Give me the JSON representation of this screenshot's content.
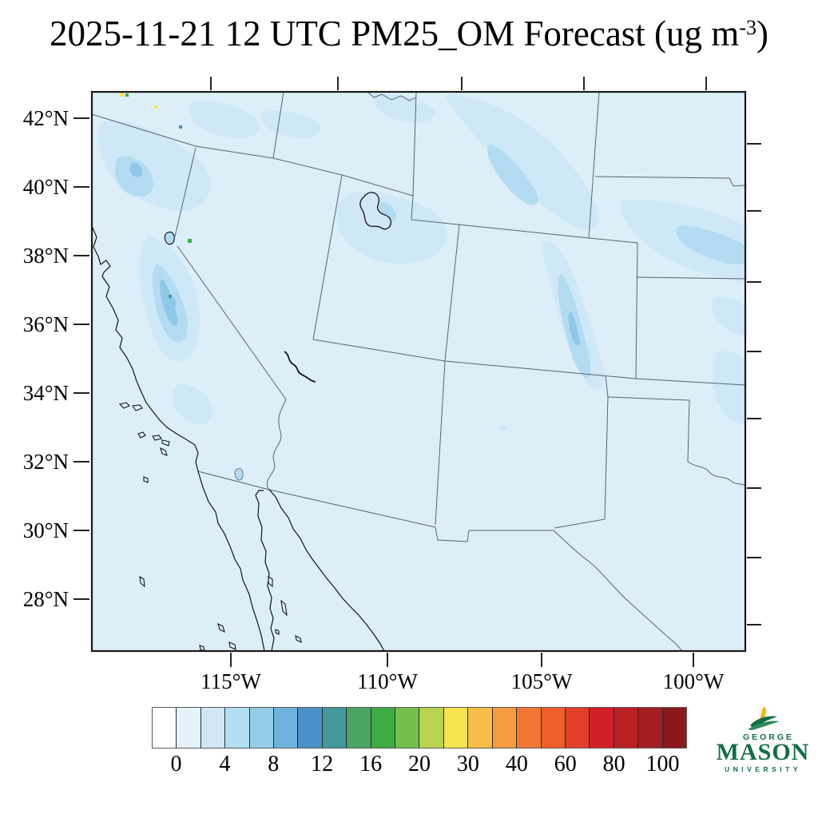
{
  "title": {
    "main": "2025-11-21 12 UTC PM25_OM Forecast (ug m",
    "superscript": "-3",
    "close": ")"
  },
  "map": {
    "lat_ticks": [
      "42°N",
      "40°N",
      "38°N",
      "36°N",
      "34°N",
      "32°N",
      "30°N",
      "28°N"
    ],
    "lon_ticks": [
      "115°W",
      "110°W",
      "105°W",
      "100°W"
    ],
    "background_color": "#dceef7",
    "shading_colors": {
      "level1": "#cfe8f7",
      "level2": "#b3dcf2",
      "level3": "#8fc9ea"
    }
  },
  "colorbar": {
    "labels": [
      "0",
      "4",
      "8",
      "12",
      "16",
      "20",
      "30",
      "40",
      "60",
      "80",
      "100"
    ],
    "colors": [
      "#ffffff",
      "#e4f2fb",
      "#d0e8f6",
      "#b4def2",
      "#95cde9",
      "#6fb3dd",
      "#4c92ca",
      "#43999c",
      "#4aa564",
      "#3fab45",
      "#74c04b",
      "#b8d34d",
      "#f7e34e",
      "#f9be4a",
      "#f89c40",
      "#f47834",
      "#ee5f2c",
      "#e23e28",
      "#d22027",
      "#bc2024",
      "#a41d21",
      "#8c181c"
    ]
  },
  "logo": {
    "george": "GEORGE",
    "mason": "MASON",
    "university": "UNIVERSITY",
    "green": "#116e45",
    "gold": "#f6b40e"
  }
}
